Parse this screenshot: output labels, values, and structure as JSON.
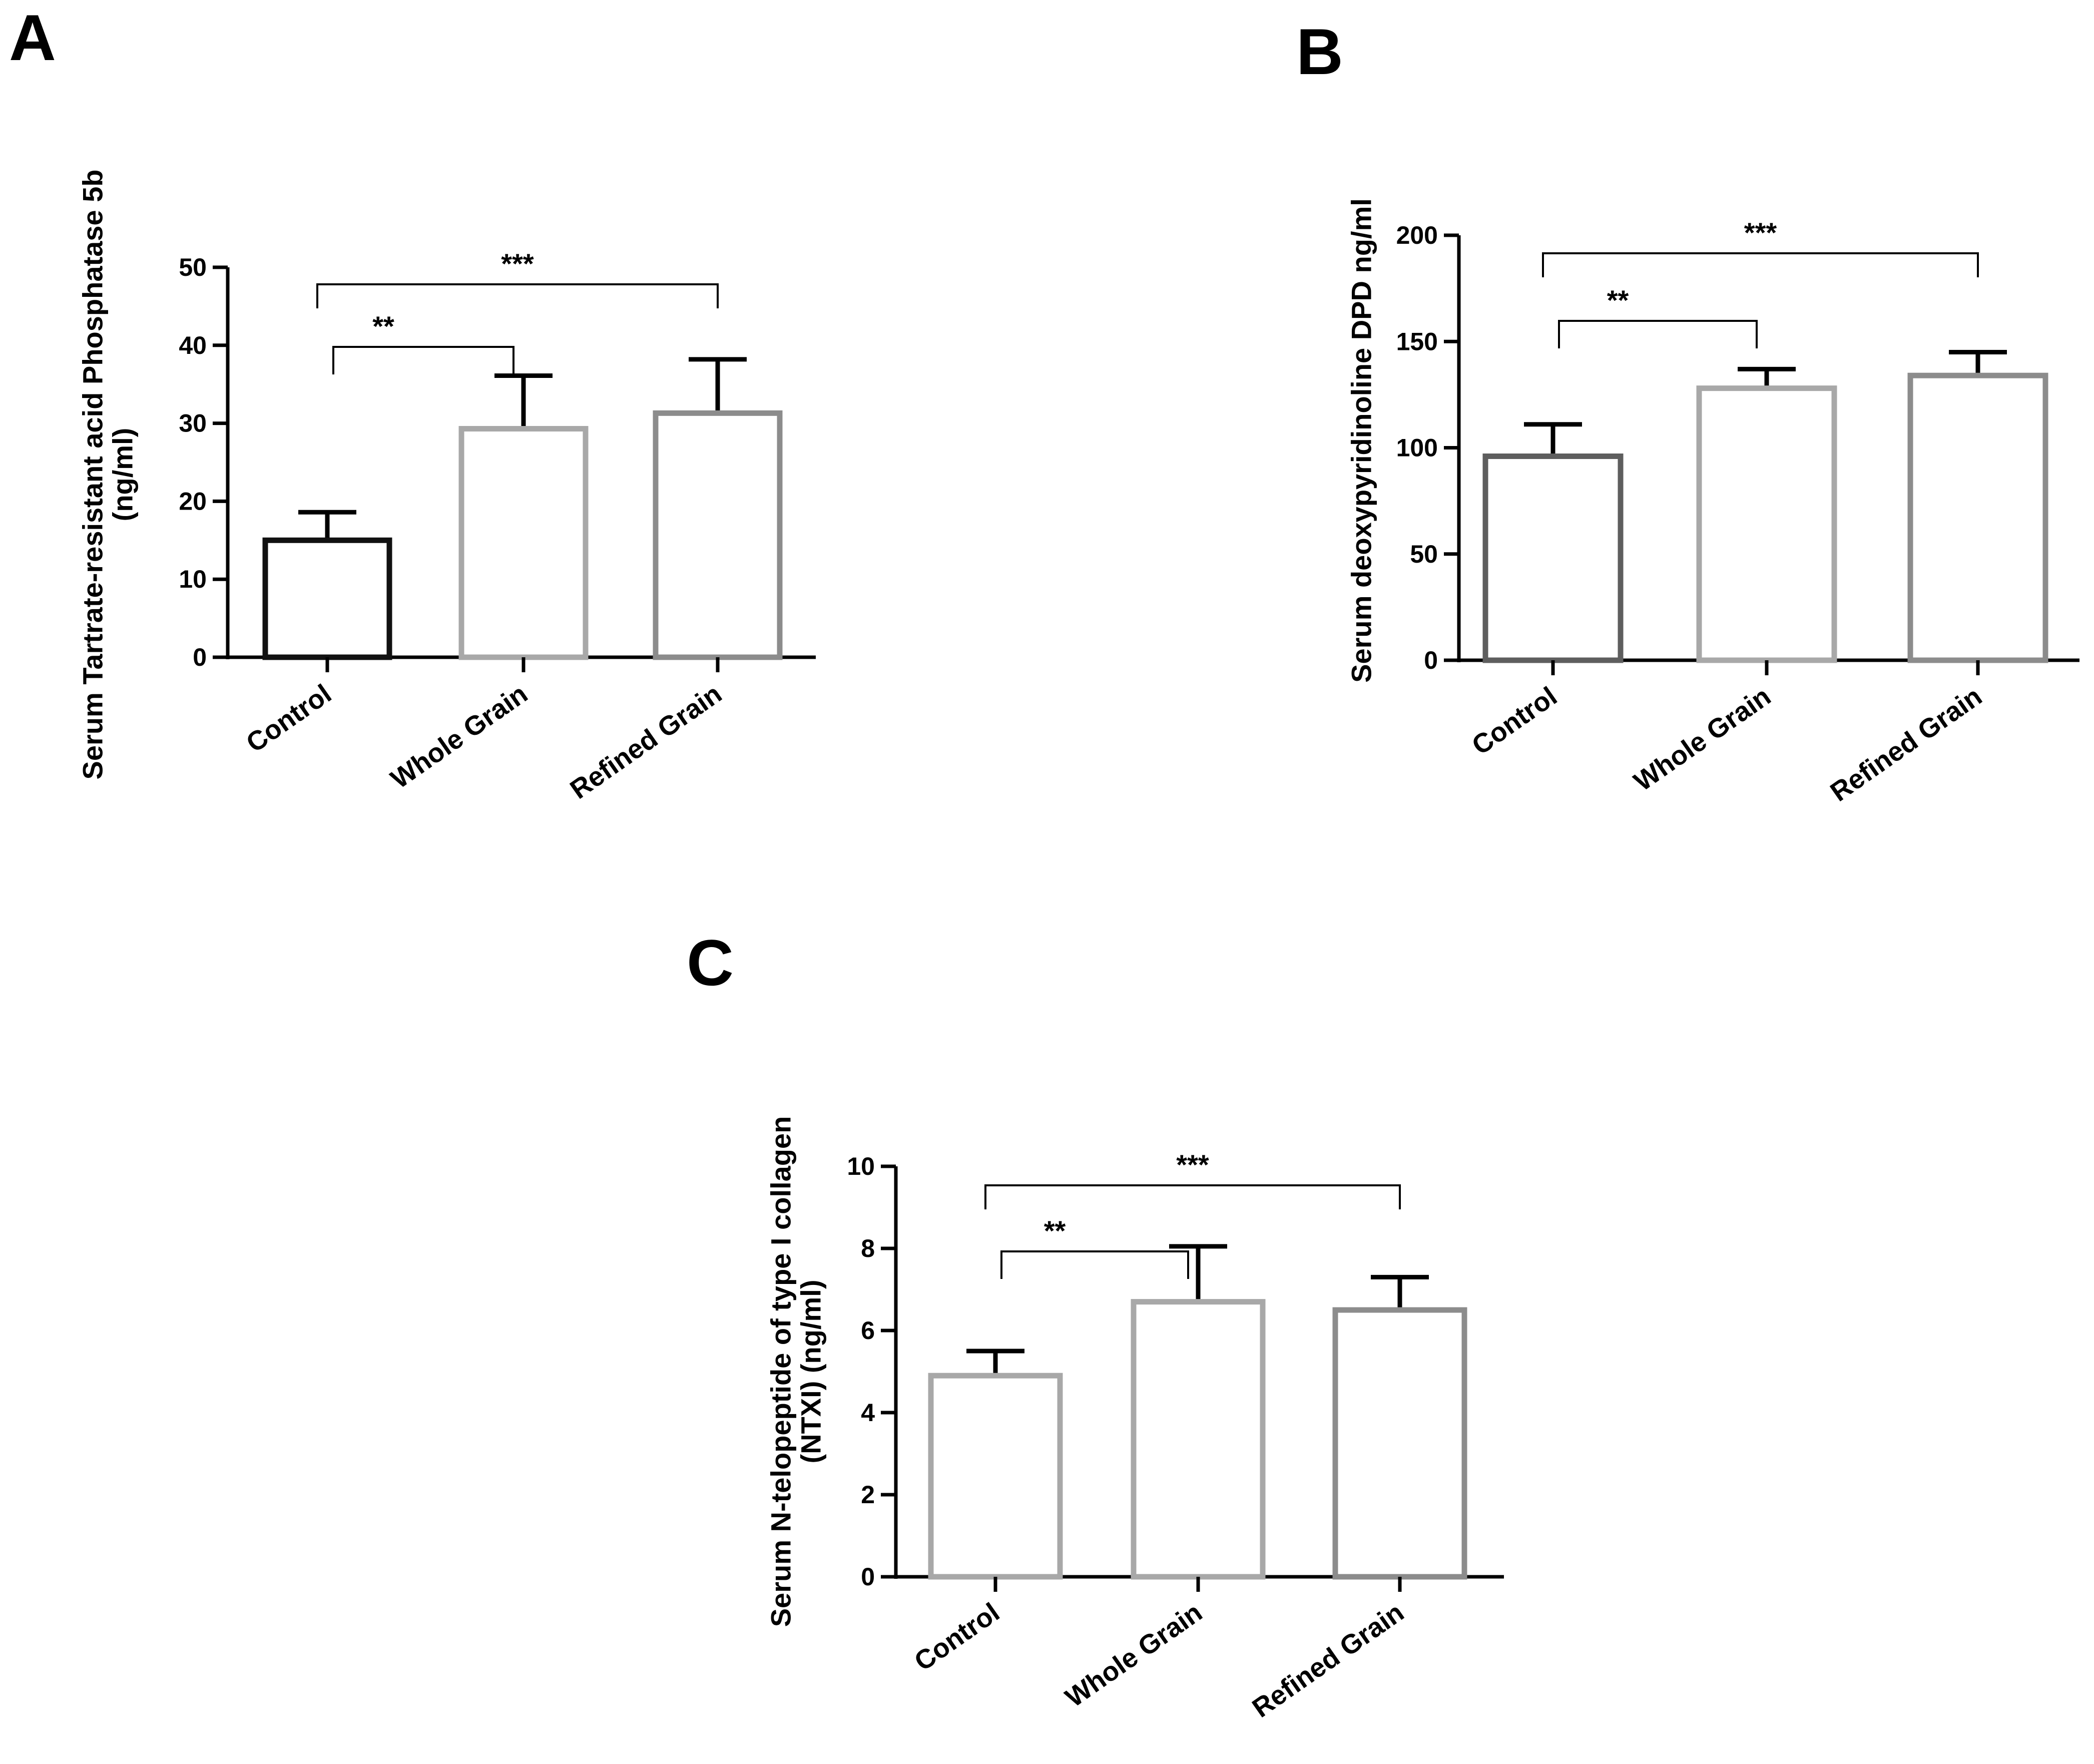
{
  "chart_data": [
    {
      "panel": "A",
      "type": "bar",
      "categories": [
        "Control",
        "Whole Grain",
        "Refined Grain"
      ],
      "values": [
        15,
        29.3,
        31.3
      ],
      "errors": [
        3.6,
        6.8,
        6.9
      ],
      "bar_colors": [
        "#111111",
        "#a8a8a8",
        "#8c8c8c"
      ],
      "ylabel": [
        "Serum Tartrate-resistant acid Phosphatase 5b",
        "(ng/ml)"
      ],
      "xlabel": "",
      "ylim": [
        0,
        50
      ],
      "yticks": [
        0,
        10,
        20,
        30,
        40,
        50
      ],
      "significance": [
        {
          "from": 0,
          "to": 1,
          "label": "**",
          "level": 0
        },
        {
          "from": 0,
          "to": 2,
          "label": "***",
          "level": 1
        }
      ]
    },
    {
      "panel": "B",
      "type": "bar",
      "categories": [
        "Control",
        "Whole Grain",
        "Refined Grain"
      ],
      "values": [
        96,
        128,
        134
      ],
      "errors": [
        15,
        9,
        11
      ],
      "bar_colors": [
        "#5e5e5e",
        "#a8a8a8",
        "#8c8c8c"
      ],
      "ylabel": [
        "Serum deoxypyridinoline DPD ng/ml"
      ],
      "xlabel": "",
      "ylim": [
        0,
        200
      ],
      "yticks": [
        0,
        50,
        100,
        150,
        200
      ],
      "significance": [
        {
          "from": 0,
          "to": 1,
          "label": "**",
          "level": 0
        },
        {
          "from": 0,
          "to": 2,
          "label": "***",
          "level": 1
        }
      ]
    },
    {
      "panel": "C",
      "type": "bar",
      "categories": [
        "Control",
        "Whole Grain",
        "Refined Grain"
      ],
      "values": [
        4.9,
        6.7,
        6.5
      ],
      "errors": [
        0.6,
        1.35,
        0.8
      ],
      "bar_colors": [
        "#a8a8a8",
        "#a8a8a8",
        "#8c8c8c"
      ],
      "ylabel": [
        "Serum N-telopeptide of type I collagen",
        "(NTXI) (ng/ml)"
      ],
      "xlabel": "",
      "ylim": [
        0,
        10
      ],
      "yticks": [
        0,
        2,
        4,
        6,
        8,
        10
      ],
      "significance": [
        {
          "from": 0,
          "to": 1,
          "label": "**",
          "level": 0
        },
        {
          "from": 0,
          "to": 2,
          "label": "***",
          "level": 1
        }
      ]
    }
  ]
}
